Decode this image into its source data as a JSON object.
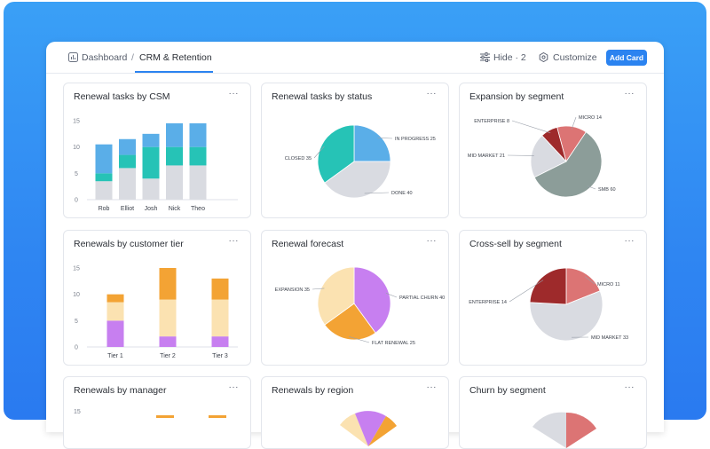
{
  "breadcrumb": {
    "root": "Dashboard",
    "separator": "/",
    "current": "CRM & Retention"
  },
  "toolbar": {
    "hide_label": "Hide · 2",
    "customize_label": "Customize",
    "add_card_label": "Add Card"
  },
  "icons": {
    "dashboard": "dashboard-icon",
    "hide": "sliders-icon",
    "customize": "gear-icon",
    "menu": "more-icon"
  },
  "colors": {
    "accent": "#2b83f0",
    "blue": "#5aaee8",
    "teal": "#26c3b6",
    "gray": "#d9dbe1",
    "orange": "#f3a334",
    "cream": "#fbe2b1",
    "purple": "#c77ff0",
    "darkred": "#9e2a2b",
    "rose": "#dc7474",
    "sage": "#8c9d99"
  },
  "cards": [
    {
      "title": "Renewal tasks by CSM",
      "menu": "···",
      "chart_index": 0
    },
    {
      "title": "Renewal tasks by status",
      "menu": "···",
      "chart_index": 1
    },
    {
      "title": "Expansion by segment",
      "menu": "···",
      "chart_index": 2
    },
    {
      "title": "Renewals by customer tier",
      "menu": "···",
      "chart_index": 3
    },
    {
      "title": "Renewal forecast",
      "menu": "···",
      "chart_index": 4
    },
    {
      "title": "Cross-sell by segment",
      "menu": "···",
      "chart_index": 5
    },
    {
      "title": "Renewals by manager",
      "menu": "···"
    },
    {
      "title": "Renewals by region",
      "menu": "···"
    },
    {
      "title": "Churn by segment",
      "menu": "···"
    }
  ],
  "row3_ticks": [
    "15"
  ],
  "chart_data": [
    {
      "type": "bar",
      "stacked": true,
      "categories": [
        "Rob",
        "Elliot",
        "Josh",
        "Nick",
        "Theo"
      ],
      "ylim": [
        0,
        15
      ],
      "yticks": [
        0,
        5,
        10,
        15
      ],
      "series": [
        {
          "color": "#d9dbe1",
          "values": [
            3.5,
            6,
            4,
            6.5,
            6.5
          ]
        },
        {
          "color": "#26c3b6",
          "values": [
            1.5,
            2.5,
            6,
            3.5,
            3.5
          ]
        },
        {
          "color": "#5aaee8",
          "values": [
            5.5,
            3,
            2.5,
            4.5,
            4.5
          ]
        }
      ]
    },
    {
      "type": "pie",
      "slices": [
        {
          "label": "IN PROGRESS 25",
          "value": 25,
          "color": "#5aaee8"
        },
        {
          "label": "DONE 40",
          "value": 40,
          "color": "#d9dbe1"
        },
        {
          "label": "CLOSED 35",
          "value": 35,
          "color": "#26c3b6"
        }
      ]
    },
    {
      "type": "pie",
      "slices": [
        {
          "label": "MICRO 14",
          "value": 14,
          "color": "#dc7474"
        },
        {
          "label": "SMB 60",
          "value": 60,
          "color": "#8c9d99"
        },
        {
          "label": "MID MARKET 21",
          "value": 21,
          "color": "#d9dbe1"
        },
        {
          "label": "ENTERPRISE 8",
          "value": 8,
          "color": "#9e2a2b"
        }
      ]
    },
    {
      "type": "bar",
      "stacked": true,
      "categories": [
        "Tier 1",
        "Tier 2",
        "Tier 3"
      ],
      "ylim": [
        0,
        15
      ],
      "yticks": [
        0,
        5,
        10,
        15
      ],
      "series": [
        {
          "color": "#c77ff0",
          "values": [
            5,
            2,
            2
          ]
        },
        {
          "color": "#fbe2b1",
          "values": [
            3.5,
            7,
            7
          ]
        },
        {
          "color": "#f3a334",
          "values": [
            1.5,
            6,
            4
          ]
        }
      ]
    },
    {
      "type": "pie",
      "slices": [
        {
          "label": "PARTIAL CHURN 40",
          "value": 40,
          "color": "#c77ff0"
        },
        {
          "label": "FLAT RENEWAL 25",
          "value": 25,
          "color": "#f3a334"
        },
        {
          "label": "EXPANSION 35",
          "value": 35,
          "color": "#fbe2b1"
        }
      ]
    },
    {
      "type": "pie",
      "slices": [
        {
          "label": "MICRO 11",
          "value": 11,
          "color": "#dc7474"
        },
        {
          "label": "MID MARKET 33",
          "value": 33,
          "color": "#d9dbe1"
        },
        {
          "label": "ENTERPRISE 14",
          "value": 14,
          "color": "#9e2a2b"
        }
      ]
    }
  ]
}
